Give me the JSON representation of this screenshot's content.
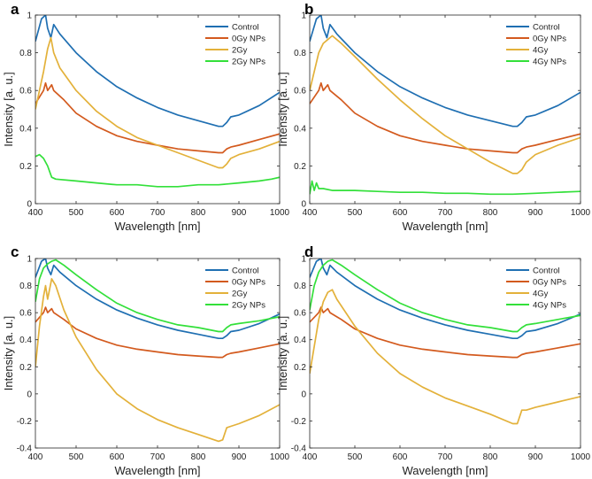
{
  "figure": {
    "series_colors": {
      "Control": "#1f6fb2",
      "0Gy NPs": "#d35a1e",
      "2Gy": "#e3b13a",
      "2Gy NPs": "#33e03a",
      "4Gy": "#e3b13a",
      "4Gy NPs": "#33e03a"
    }
  },
  "chart_data": [
    {
      "panel": "a",
      "type": "line",
      "xlabel": "Wavelength [nm]",
      "ylabel": "Intensity [a. u.]",
      "xlim": [
        400,
        1000
      ],
      "ylim": [
        0,
        1
      ],
      "xticks": [
        400,
        500,
        600,
        700,
        800,
        900,
        1000
      ],
      "yticks": [
        0,
        0.2,
        0.4,
        0.6,
        0.8,
        1
      ],
      "ytick_labels": [
        "0",
        "0.2",
        "0.4",
        "0.6",
        "0.8",
        "1"
      ],
      "legend": [
        "Control",
        "0Gy NPs",
        "2Gy",
        "2Gy NPs"
      ],
      "series": [
        {
          "name": "Control",
          "color": "#1f6fb2",
          "x": [
            400,
            415,
            420,
            425,
            430,
            438,
            445,
            460,
            500,
            550,
            600,
            650,
            700,
            750,
            800,
            850,
            860,
            870,
            880,
            900,
            950,
            1000
          ],
          "y": [
            0.86,
            0.98,
            0.99,
            1.0,
            0.93,
            0.88,
            0.95,
            0.9,
            0.8,
            0.7,
            0.62,
            0.56,
            0.51,
            0.47,
            0.44,
            0.41,
            0.41,
            0.43,
            0.46,
            0.47,
            0.52,
            0.59
          ]
        },
        {
          "name": "0Gy NPs",
          "color": "#d35a1e",
          "x": [
            400,
            420,
            425,
            430,
            440,
            445,
            470,
            500,
            550,
            600,
            650,
            700,
            750,
            800,
            850,
            860,
            870,
            880,
            900,
            950,
            1000
          ],
          "y": [
            0.53,
            0.6,
            0.64,
            0.6,
            0.63,
            0.6,
            0.55,
            0.48,
            0.41,
            0.36,
            0.33,
            0.31,
            0.29,
            0.28,
            0.27,
            0.27,
            0.29,
            0.3,
            0.31,
            0.34,
            0.37
          ]
        },
        {
          "name": "2Gy",
          "color": "#e3b13a",
          "x": [
            400,
            410,
            420,
            430,
            438,
            445,
            460,
            500,
            550,
            600,
            650,
            700,
            750,
            800,
            850,
            860,
            870,
            880,
            900,
            950,
            1000
          ],
          "y": [
            0.5,
            0.6,
            0.7,
            0.82,
            0.88,
            0.8,
            0.72,
            0.6,
            0.49,
            0.41,
            0.35,
            0.31,
            0.27,
            0.23,
            0.19,
            0.19,
            0.21,
            0.24,
            0.26,
            0.29,
            0.33
          ]
        },
        {
          "name": "2Gy NPs",
          "color": "#33e03a",
          "x": [
            400,
            410,
            420,
            430,
            440,
            450,
            500,
            550,
            600,
            650,
            700,
            750,
            800,
            850,
            900,
            950,
            980,
            1000
          ],
          "y": [
            0.25,
            0.26,
            0.24,
            0.2,
            0.14,
            0.13,
            0.12,
            0.11,
            0.1,
            0.1,
            0.09,
            0.09,
            0.1,
            0.1,
            0.11,
            0.12,
            0.13,
            0.14
          ]
        }
      ]
    },
    {
      "panel": "b",
      "type": "line",
      "xlabel": "Wavelength [nm]",
      "ylabel": "Intensity [a. u.]",
      "xlim": [
        400,
        1000
      ],
      "ylim": [
        0,
        1
      ],
      "xticks": [
        400,
        500,
        600,
        700,
        800,
        900,
        1000
      ],
      "yticks": [
        0,
        0.2,
        0.4,
        0.6,
        0.8,
        1
      ],
      "ytick_labels": [
        "0",
        "0.2",
        "0.4",
        "0.6",
        "0.8",
        "1"
      ],
      "legend": [
        "Control",
        "0Gy NPs",
        "4Gy",
        "4Gy NPs"
      ],
      "series": [
        {
          "name": "Control",
          "color": "#1f6fb2",
          "x": [
            400,
            415,
            420,
            425,
            430,
            438,
            445,
            460,
            500,
            550,
            600,
            650,
            700,
            750,
            800,
            850,
            860,
            870,
            880,
            900,
            950,
            1000
          ],
          "y": [
            0.86,
            0.98,
            0.99,
            1.0,
            0.93,
            0.88,
            0.95,
            0.9,
            0.8,
            0.7,
            0.62,
            0.56,
            0.51,
            0.47,
            0.44,
            0.41,
            0.41,
            0.43,
            0.46,
            0.47,
            0.52,
            0.59
          ]
        },
        {
          "name": "0Gy NPs",
          "color": "#d35a1e",
          "x": [
            400,
            420,
            425,
            430,
            440,
            445,
            470,
            500,
            550,
            600,
            650,
            700,
            750,
            800,
            850,
            860,
            870,
            880,
            900,
            950,
            1000
          ],
          "y": [
            0.53,
            0.6,
            0.64,
            0.6,
            0.63,
            0.6,
            0.55,
            0.48,
            0.41,
            0.36,
            0.33,
            0.31,
            0.29,
            0.28,
            0.27,
            0.27,
            0.29,
            0.3,
            0.31,
            0.34,
            0.37
          ]
        },
        {
          "name": "4Gy",
          "color": "#e3b13a",
          "x": [
            400,
            410,
            420,
            430,
            440,
            450,
            470,
            500,
            550,
            600,
            650,
            700,
            750,
            800,
            850,
            860,
            870,
            880,
            900,
            950,
            1000
          ],
          "y": [
            0.6,
            0.7,
            0.8,
            0.85,
            0.87,
            0.89,
            0.85,
            0.78,
            0.66,
            0.55,
            0.45,
            0.36,
            0.29,
            0.22,
            0.16,
            0.16,
            0.18,
            0.22,
            0.26,
            0.31,
            0.35
          ]
        },
        {
          "name": "4Gy NPs",
          "color": "#33e03a",
          "x": [
            400,
            405,
            410,
            415,
            420,
            430,
            450,
            500,
            550,
            600,
            650,
            700,
            750,
            800,
            850,
            900,
            950,
            1000
          ],
          "y": [
            0.05,
            0.12,
            0.07,
            0.11,
            0.08,
            0.08,
            0.07,
            0.07,
            0.065,
            0.06,
            0.06,
            0.055,
            0.055,
            0.05,
            0.05,
            0.055,
            0.06,
            0.065
          ]
        }
      ]
    },
    {
      "panel": "c",
      "type": "line",
      "xlabel": "Wavelength [nm]",
      "ylabel": "Intensity [a. u.]",
      "xlim": [
        400,
        1000
      ],
      "ylim": [
        -0.4,
        1
      ],
      "xticks": [
        400,
        500,
        600,
        700,
        800,
        900,
        1000
      ],
      "yticks": [
        -0.4,
        -0.2,
        0,
        0.2,
        0.4,
        0.6,
        0.8,
        1
      ],
      "ytick_labels": [
        "-0.4",
        "-0.2",
        "0",
        "0.2",
        "0.4",
        "0.6",
        "0.8",
        "1"
      ],
      "legend": [
        "Control",
        "0Gy NPs",
        "2Gy",
        "2Gy NPs"
      ],
      "series": [
        {
          "name": "Control",
          "color": "#1f6fb2",
          "x": [
            400,
            415,
            420,
            425,
            430,
            438,
            445,
            460,
            500,
            550,
            600,
            650,
            700,
            750,
            800,
            850,
            860,
            870,
            880,
            900,
            950,
            1000
          ],
          "y": [
            0.86,
            0.98,
            0.99,
            1.0,
            0.93,
            0.88,
            0.95,
            0.9,
            0.8,
            0.7,
            0.62,
            0.56,
            0.51,
            0.47,
            0.44,
            0.41,
            0.41,
            0.43,
            0.46,
            0.47,
            0.52,
            0.59
          ]
        },
        {
          "name": "0Gy NPs",
          "color": "#d35a1e",
          "x": [
            400,
            420,
            425,
            430,
            440,
            445,
            470,
            500,
            550,
            600,
            650,
            700,
            750,
            800,
            850,
            860,
            870,
            880,
            900,
            950,
            1000
          ],
          "y": [
            0.53,
            0.6,
            0.64,
            0.6,
            0.63,
            0.6,
            0.55,
            0.48,
            0.41,
            0.36,
            0.33,
            0.31,
            0.29,
            0.28,
            0.27,
            0.27,
            0.29,
            0.3,
            0.31,
            0.34,
            0.37
          ]
        },
        {
          "name": "2Gy",
          "color": "#e3b13a",
          "x": [
            400,
            410,
            420,
            425,
            430,
            440,
            450,
            470,
            500,
            550,
            600,
            650,
            700,
            750,
            800,
            850,
            860,
            870,
            880,
            900,
            950,
            1000
          ],
          "y": [
            0.2,
            0.5,
            0.72,
            0.8,
            0.7,
            0.85,
            0.8,
            0.62,
            0.42,
            0.18,
            0.0,
            -0.11,
            -0.19,
            -0.25,
            -0.3,
            -0.35,
            -0.34,
            -0.25,
            -0.24,
            -0.22,
            -0.16,
            -0.08
          ]
        },
        {
          "name": "2Gy NPs",
          "color": "#33e03a",
          "x": [
            400,
            410,
            420,
            430,
            440,
            450,
            470,
            500,
            550,
            600,
            650,
            700,
            750,
            800,
            850,
            860,
            870,
            880,
            900,
            950,
            1000
          ],
          "y": [
            0.68,
            0.85,
            0.93,
            0.96,
            0.98,
            0.99,
            0.95,
            0.88,
            0.77,
            0.67,
            0.6,
            0.55,
            0.51,
            0.49,
            0.46,
            0.46,
            0.49,
            0.51,
            0.52,
            0.54,
            0.57
          ]
        }
      ]
    },
    {
      "panel": "d",
      "type": "line",
      "xlabel": "Wavelength [nm]",
      "ylabel": "Intensity [a. u.]",
      "xlim": [
        400,
        1000
      ],
      "ylim": [
        -0.4,
        1
      ],
      "xticks": [
        400,
        500,
        600,
        700,
        800,
        900,
        1000
      ],
      "yticks": [
        -0.4,
        -0.2,
        0,
        0.2,
        0.4,
        0.6,
        0.8,
        1
      ],
      "ytick_labels": [
        "-0.4",
        "-0.2",
        "0",
        "0.2",
        "0.4",
        "0.6",
        "0.8",
        "1"
      ],
      "legend": [
        "Control",
        "0Gy NPs",
        "4Gy",
        "4Gy NPs"
      ],
      "series": [
        {
          "name": "Control",
          "color": "#1f6fb2",
          "x": [
            400,
            415,
            420,
            425,
            430,
            438,
            445,
            460,
            500,
            550,
            600,
            650,
            700,
            750,
            800,
            850,
            860,
            870,
            880,
            900,
            950,
            1000
          ],
          "y": [
            0.86,
            0.98,
            0.99,
            1.0,
            0.93,
            0.88,
            0.95,
            0.9,
            0.8,
            0.7,
            0.62,
            0.56,
            0.51,
            0.47,
            0.44,
            0.41,
            0.41,
            0.43,
            0.46,
            0.47,
            0.52,
            0.59
          ]
        },
        {
          "name": "0Gy NPs",
          "color": "#d35a1e",
          "x": [
            400,
            420,
            425,
            430,
            440,
            445,
            470,
            500,
            550,
            600,
            650,
            700,
            750,
            800,
            850,
            860,
            870,
            880,
            900,
            950,
            1000
          ],
          "y": [
            0.53,
            0.6,
            0.64,
            0.6,
            0.63,
            0.6,
            0.55,
            0.48,
            0.41,
            0.36,
            0.33,
            0.31,
            0.29,
            0.28,
            0.27,
            0.27,
            0.29,
            0.3,
            0.31,
            0.34,
            0.37
          ]
        },
        {
          "name": "4Gy",
          "color": "#e3b13a",
          "x": [
            400,
            410,
            420,
            430,
            440,
            450,
            460,
            500,
            550,
            600,
            650,
            700,
            750,
            800,
            850,
            860,
            870,
            880,
            900,
            950,
            1000
          ],
          "y": [
            0.15,
            0.35,
            0.55,
            0.68,
            0.75,
            0.77,
            0.7,
            0.5,
            0.3,
            0.15,
            0.05,
            -0.03,
            -0.09,
            -0.15,
            -0.22,
            -0.22,
            -0.12,
            -0.12,
            -0.1,
            -0.06,
            -0.02
          ]
        },
        {
          "name": "4Gy NPs",
          "color": "#33e03a",
          "x": [
            400,
            410,
            420,
            430,
            440,
            450,
            470,
            500,
            550,
            600,
            650,
            700,
            750,
            800,
            850,
            860,
            870,
            880,
            900,
            950,
            1000
          ],
          "y": [
            0.62,
            0.8,
            0.9,
            0.95,
            0.98,
            0.99,
            0.95,
            0.88,
            0.77,
            0.67,
            0.6,
            0.55,
            0.51,
            0.49,
            0.46,
            0.46,
            0.49,
            0.51,
            0.52,
            0.55,
            0.58
          ]
        }
      ]
    }
  ]
}
